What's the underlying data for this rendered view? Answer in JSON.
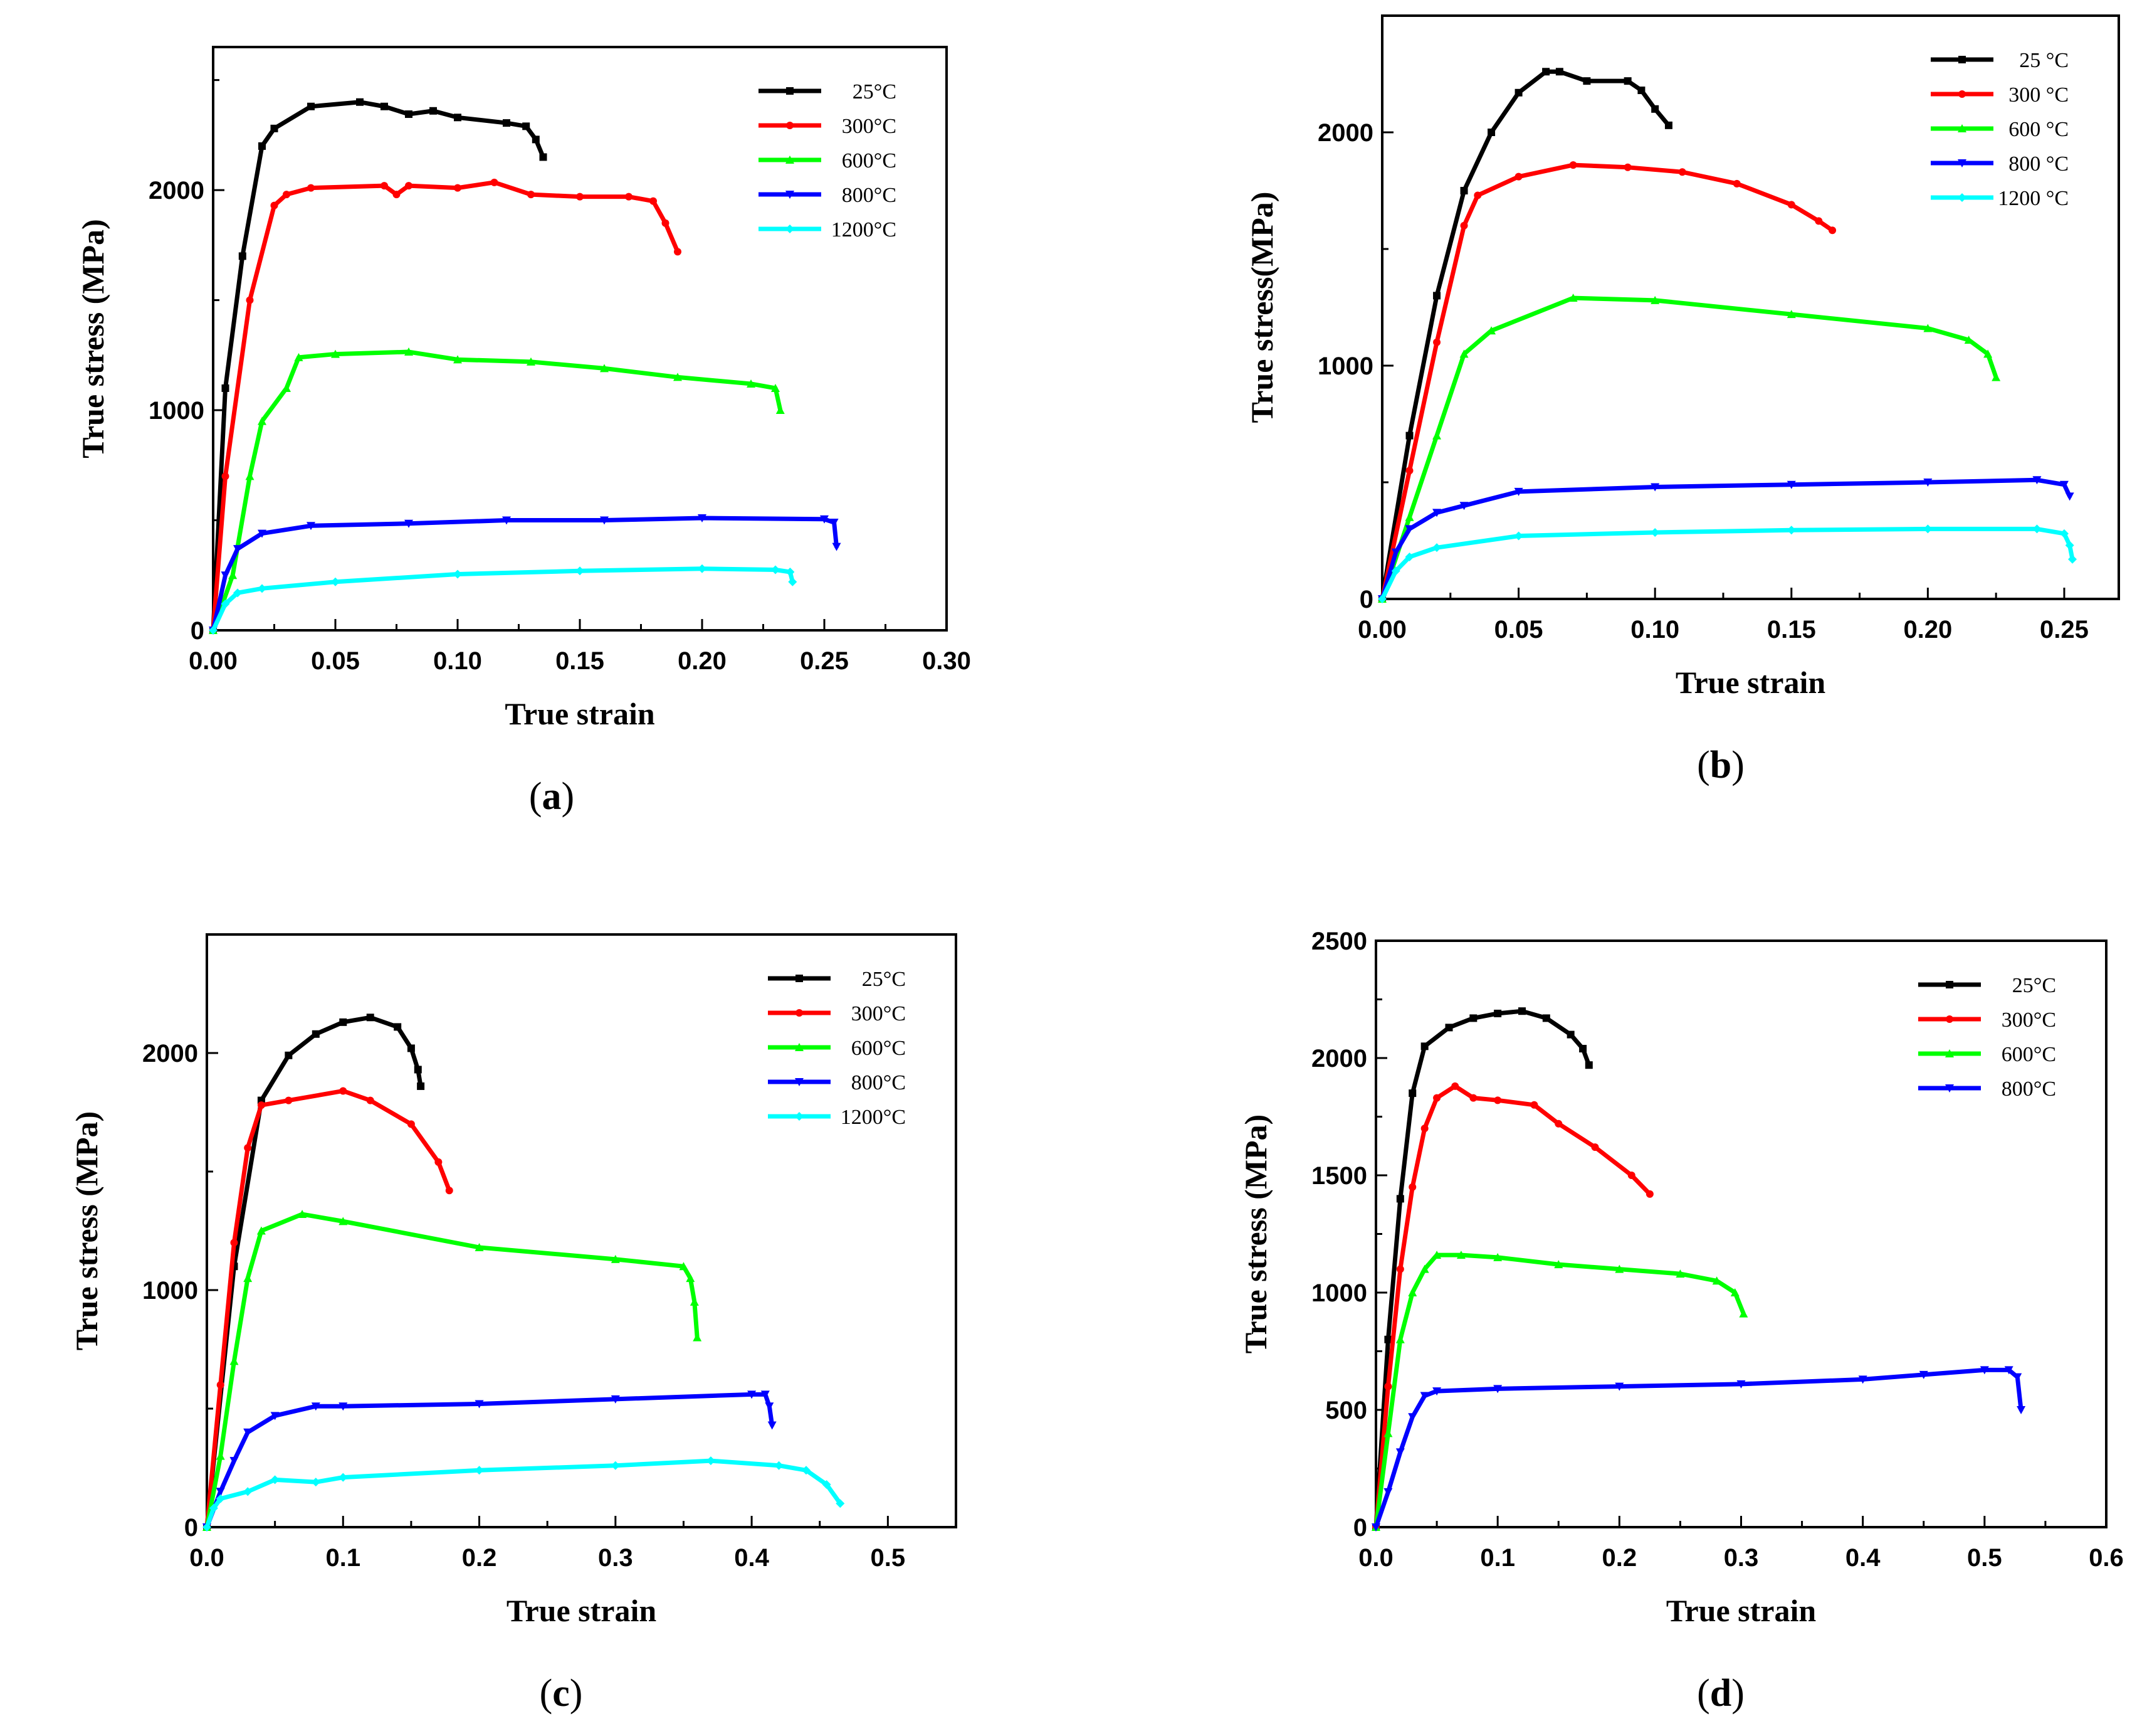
{
  "chart_data": [
    {
      "id": "a",
      "type": "line",
      "caption": "a",
      "xlabel": "True strain",
      "ylabel": "True stress  (MPa)",
      "xlim": [
        0,
        0.3
      ],
      "ylim": [
        0,
        2650
      ],
      "xticks": [
        "0.00",
        "0.05",
        "0.10",
        "0.15",
        "0.20",
        "0.25",
        "0.30"
      ],
      "yticks": [
        "0",
        "1000",
        "2000"
      ],
      "legend_position": "top-right",
      "series": [
        {
          "name": "25°C",
          "color": "#000000",
          "x": [
            0,
            0.005,
            0.012,
            0.02,
            0.025,
            0.04,
            0.06,
            0.07,
            0.08,
            0.09,
            0.1,
            0.12,
            0.128,
            0.132,
            0.135
          ],
          "y": [
            0,
            1100,
            1700,
            2200,
            2280,
            2380,
            2400,
            2380,
            2345,
            2360,
            2330,
            2305,
            2290,
            2230,
            2150
          ]
        },
        {
          "name": "300°C",
          "color": "#ff0000",
          "x": [
            0,
            0.005,
            0.015,
            0.025,
            0.03,
            0.04,
            0.07,
            0.075,
            0.08,
            0.1,
            0.115,
            0.13,
            0.15,
            0.17,
            0.18,
            0.185,
            0.19
          ],
          "y": [
            0,
            700,
            1500,
            1930,
            1980,
            2010,
            2020,
            1980,
            2020,
            2010,
            2035,
            1980,
            1970,
            1970,
            1950,
            1850,
            1720
          ]
        },
        {
          "name": "600°C",
          "color": "#00ff00",
          "x": [
            0,
            0.008,
            0.015,
            0.02,
            0.03,
            0.035,
            0.05,
            0.08,
            0.1,
            0.13,
            0.16,
            0.19,
            0.22,
            0.23,
            0.232
          ],
          "y": [
            0,
            250,
            700,
            950,
            1100,
            1240,
            1255,
            1265,
            1230,
            1220,
            1190,
            1150,
            1120,
            1100,
            1000
          ]
        },
        {
          "name": "800°C",
          "color": "#0000ff",
          "x": [
            0,
            0.005,
            0.01,
            0.02,
            0.04,
            0.08,
            0.12,
            0.16,
            0.2,
            0.25,
            0.254,
            0.255
          ],
          "y": [
            0,
            250,
            370,
            440,
            475,
            485,
            500,
            500,
            510,
            505,
            490,
            380
          ]
        },
        {
          "name": "1200°C",
          "color": "#00ffff",
          "x": [
            0,
            0.005,
            0.01,
            0.02,
            0.05,
            0.1,
            0.15,
            0.2,
            0.23,
            0.236,
            0.237
          ],
          "y": [
            0,
            120,
            170,
            190,
            220,
            255,
            270,
            280,
            275,
            265,
            220
          ]
        }
      ]
    },
    {
      "id": "b",
      "type": "line",
      "caption": "b",
      "xlabel": "True strain",
      "ylabel": "True stress(MPa)",
      "xlim": [
        0,
        0.27
      ],
      "ylim": [
        0,
        2500
      ],
      "xticks": [
        "0.00",
        "0.05",
        "0.10",
        "0.15",
        "0.20",
        "0.25"
      ],
      "yticks": [
        "0",
        "1000",
        "2000"
      ],
      "legend_position": "top-right",
      "series": [
        {
          "name": "25 °C",
          "color": "#000000",
          "x": [
            0,
            0.01,
            0.02,
            0.03,
            0.04,
            0.05,
            0.06,
            0.065,
            0.075,
            0.09,
            0.095,
            0.1,
            0.105
          ],
          "y": [
            0,
            700,
            1300,
            1750,
            2000,
            2170,
            2260,
            2260,
            2220,
            2220,
            2180,
            2100,
            2030
          ]
        },
        {
          "name": "300 °C",
          "color": "#ff0000",
          "x": [
            0,
            0.01,
            0.02,
            0.03,
            0.035,
            0.05,
            0.07,
            0.09,
            0.11,
            0.13,
            0.15,
            0.16,
            0.165
          ],
          "y": [
            0,
            550,
            1100,
            1600,
            1730,
            1810,
            1860,
            1850,
            1830,
            1780,
            1690,
            1620,
            1580
          ]
        },
        {
          "name": "600 °C",
          "color": "#00ff00",
          "x": [
            0,
            0.01,
            0.02,
            0.03,
            0.04,
            0.07,
            0.1,
            0.15,
            0.2,
            0.215,
            0.222,
            0.225
          ],
          "y": [
            0,
            350,
            700,
            1050,
            1150,
            1290,
            1280,
            1220,
            1160,
            1110,
            1050,
            950
          ]
        },
        {
          "name": "800 °C",
          "color": "#0000ff",
          "x": [
            0,
            0.005,
            0.01,
            0.02,
            0.03,
            0.05,
            0.1,
            0.15,
            0.2,
            0.24,
            0.25,
            0.252
          ],
          "y": [
            0,
            200,
            300,
            370,
            400,
            460,
            480,
            490,
            500,
            510,
            490,
            440
          ]
        },
        {
          "name": "1200 °C",
          "color": "#00ffff",
          "x": [
            0,
            0.005,
            0.01,
            0.02,
            0.05,
            0.1,
            0.15,
            0.2,
            0.24,
            0.25,
            0.252,
            0.253
          ],
          "y": [
            0,
            120,
            180,
            220,
            270,
            285,
            295,
            300,
            300,
            280,
            230,
            170
          ]
        }
      ]
    },
    {
      "id": "c",
      "type": "line",
      "caption": "c",
      "xlabel": "True strain",
      "ylabel": "True stress  (MPa)",
      "xlim": [
        0,
        0.55
      ],
      "ylim": [
        0,
        2500
      ],
      "xticks": [
        "0.0",
        "0.1",
        "0.2",
        "0.3",
        "0.4",
        "0.5"
      ],
      "yticks": [
        "0",
        "1000",
        "2000"
      ],
      "legend_position": "top-right",
      "series": [
        {
          "name": "25°C",
          "color": "#000000",
          "x": [
            0,
            0.02,
            0.04,
            0.06,
            0.08,
            0.1,
            0.12,
            0.14,
            0.15,
            0.155,
            0.157
          ],
          "y": [
            0,
            1100,
            1800,
            1990,
            2080,
            2130,
            2150,
            2110,
            2020,
            1930,
            1860
          ]
        },
        {
          "name": "300°C",
          "color": "#ff0000",
          "x": [
            0,
            0.01,
            0.02,
            0.03,
            0.04,
            0.06,
            0.1,
            0.12,
            0.15,
            0.17,
            0.178
          ],
          "y": [
            0,
            600,
            1200,
            1600,
            1780,
            1800,
            1840,
            1800,
            1700,
            1540,
            1420
          ]
        },
        {
          "name": "600°C",
          "color": "#00ff00",
          "x": [
            0,
            0.01,
            0.02,
            0.03,
            0.04,
            0.07,
            0.1,
            0.2,
            0.3,
            0.35,
            0.355,
            0.358,
            0.36
          ],
          "y": [
            0,
            300,
            700,
            1050,
            1250,
            1320,
            1290,
            1180,
            1130,
            1100,
            1050,
            950,
            800
          ]
        },
        {
          "name": "800°C",
          "color": "#0000ff",
          "x": [
            0,
            0.01,
            0.02,
            0.03,
            0.05,
            0.08,
            0.1,
            0.2,
            0.3,
            0.4,
            0.41,
            0.413,
            0.415
          ],
          "y": [
            0,
            150,
            280,
            400,
            470,
            510,
            510,
            520,
            540,
            560,
            560,
            510,
            430
          ]
        },
        {
          "name": "1200°C",
          "color": "#00ffff",
          "x": [
            0,
            0.005,
            0.01,
            0.03,
            0.05,
            0.08,
            0.1,
            0.2,
            0.3,
            0.37,
            0.42,
            0.44,
            0.455,
            0.465
          ],
          "y": [
            0,
            80,
            120,
            150,
            200,
            190,
            210,
            240,
            260,
            280,
            260,
            240,
            180,
            100
          ]
        }
      ]
    },
    {
      "id": "d",
      "type": "line",
      "caption": "d",
      "xlabel": "True strain",
      "ylabel": "True stress  (MPa)",
      "xlim": [
        0,
        0.6
      ],
      "ylim": [
        0,
        2500
      ],
      "xticks": [
        "0.0",
        "0.1",
        "0.2",
        "0.3",
        "0.4",
        "0.5",
        "0.6"
      ],
      "yticks": [
        "0",
        "500",
        "1000",
        "1500",
        "2000",
        "2500"
      ],
      "legend_position": "top-right",
      "series": [
        {
          "name": "25°C",
          "color": "#000000",
          "x": [
            0,
            0.01,
            0.02,
            0.03,
            0.04,
            0.06,
            0.08,
            0.1,
            0.12,
            0.14,
            0.16,
            0.17,
            0.175
          ],
          "y": [
            0,
            800,
            1400,
            1850,
            2050,
            2130,
            2170,
            2190,
            2200,
            2170,
            2100,
            2040,
            1970
          ]
        },
        {
          "name": "300°C",
          "color": "#ff0000",
          "x": [
            0,
            0.01,
            0.02,
            0.03,
            0.04,
            0.05,
            0.065,
            0.08,
            0.1,
            0.13,
            0.15,
            0.18,
            0.21,
            0.225
          ],
          "y": [
            0,
            600,
            1100,
            1450,
            1700,
            1830,
            1880,
            1830,
            1820,
            1800,
            1720,
            1620,
            1500,
            1420
          ]
        },
        {
          "name": "600°C",
          "color": "#00ff00",
          "x": [
            0,
            0.01,
            0.02,
            0.03,
            0.04,
            0.05,
            0.07,
            0.1,
            0.15,
            0.2,
            0.25,
            0.28,
            0.295,
            0.302
          ],
          "y": [
            0,
            400,
            800,
            1000,
            1100,
            1160,
            1160,
            1150,
            1120,
            1100,
            1080,
            1050,
            1000,
            910
          ]
        },
        {
          "name": "800°C",
          "color": "#0000ff",
          "x": [
            0,
            0.01,
            0.02,
            0.03,
            0.04,
            0.05,
            0.1,
            0.2,
            0.3,
            0.4,
            0.45,
            0.5,
            0.52,
            0.527,
            0.53
          ],
          "y": [
            0,
            150,
            320,
            470,
            560,
            580,
            590,
            600,
            610,
            630,
            650,
            670,
            670,
            640,
            500
          ]
        }
      ]
    }
  ]
}
